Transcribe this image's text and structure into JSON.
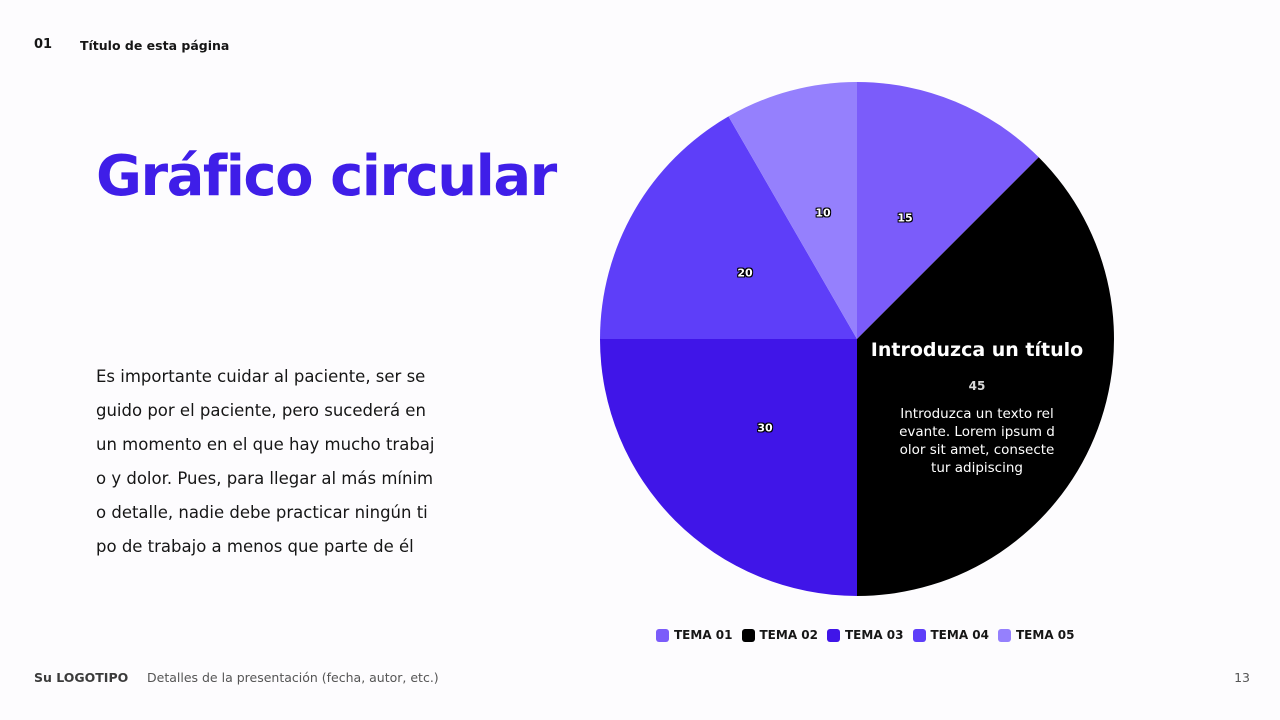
{
  "header": {
    "page_number": "01",
    "page_title": "Título de esta página"
  },
  "main": {
    "title": "Gráfico circular",
    "body_lines": [
      "Es importante cuidar al paciente, ser se",
      "guido por el paciente, pero sucederá en",
      "un momento en el que hay mucho trabaj",
      "o y dolor. Pues, para llegar al más mínim",
      "o detalle, nadie debe practicar ningún ti",
      "po de trabajo a menos que parte de él"
    ]
  },
  "callout": {
    "title": "Introduzca un título",
    "value": "45",
    "text_lines": [
      "Introduzca un texto rel",
      "evante. Lorem ipsum d",
      "olor sit amet, consecte",
      "tur adipiscing"
    ]
  },
  "legend": [
    {
      "label": "TEMA 01",
      "color": "#7b5cfa"
    },
    {
      "label": "TEMA 02",
      "color": "#000000"
    },
    {
      "label": "TEMA 03",
      "color": "#4015e8"
    },
    {
      "label": "TEMA 04",
      "color": "#5e3ef9"
    },
    {
      "label": "TEMA 05",
      "color": "#9580fd"
    }
  ],
  "footer": {
    "logo": "Su LOGOTIPO",
    "details": "Detalles de la presentación (fecha, autor, etc.)",
    "page": "13"
  },
  "chart_data": {
    "type": "pie",
    "title": "",
    "categories": [
      "TEMA 01",
      "TEMA 02",
      "TEMA 03",
      "TEMA 04",
      "TEMA 05"
    ],
    "values": [
      15,
      45,
      30,
      20,
      10
    ],
    "colors": [
      "#7b5cfa",
      "#000000",
      "#4015e8",
      "#5e3ef9",
      "#9580fd"
    ],
    "labels": [
      "15",
      "45",
      "30",
      "20",
      "10"
    ],
    "start_angle": "12 o'clock, clockwise",
    "legend_position": "bottom",
    "annotations": [
      {
        "slice": "TEMA 02",
        "title": "Introduzca un título",
        "text": "Introduzca un texto relevante. Lorem ipsum dolor sit amet, consectetur adipiscing"
      }
    ]
  }
}
